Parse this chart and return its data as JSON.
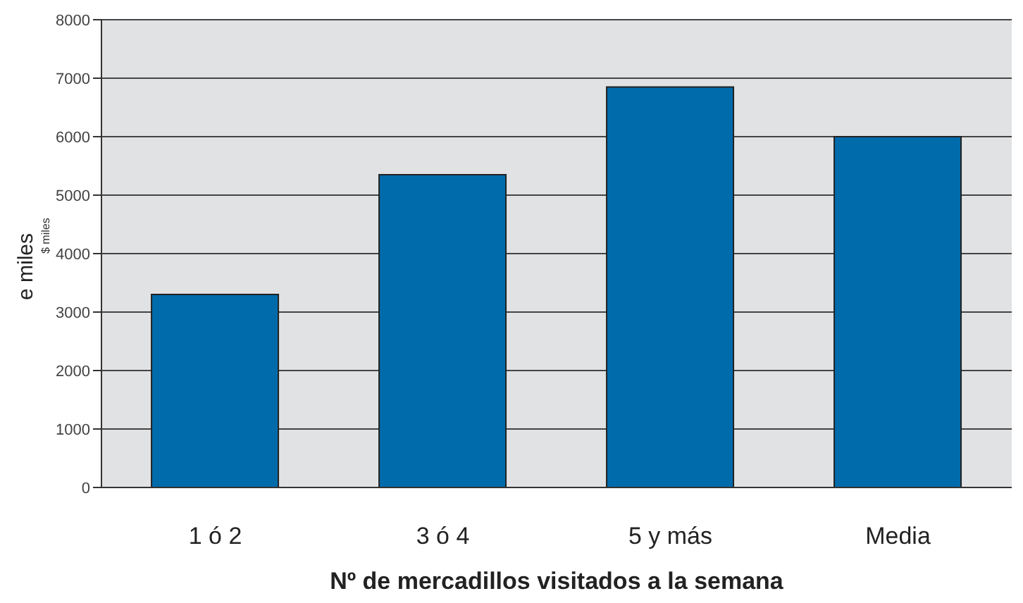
{
  "chart_data": {
    "type": "bar",
    "xlabel": "Nº de mercadillos visitados a la semana",
    "ylabel": "e miles",
    "annotations": [
      "$ miles"
    ],
    "categories": [
      "1 ó 2",
      "3 ó 4",
      "5 y más",
      "Media"
    ],
    "values": [
      3300,
      5350,
      6850,
      6000
    ],
    "color": "#006bab",
    "ylim": [
      0,
      8000
    ],
    "yticks": [
      0,
      1000,
      2000,
      3000,
      4000,
      5000,
      6000,
      7000,
      8000
    ],
    "grid": "y"
  }
}
